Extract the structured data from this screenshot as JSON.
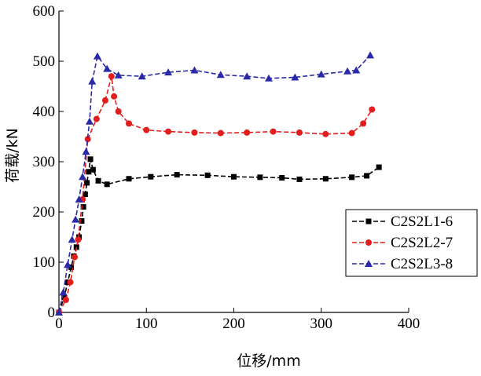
{
  "chart_data": {
    "type": "line",
    "xlabel": "位移/mm",
    "ylabel": "荷载/kN",
    "xlim": [
      0,
      400
    ],
    "ylim": [
      0,
      600
    ],
    "xticks": [
      "0",
      "100",
      "200",
      "300",
      "400"
    ],
    "yticks": [
      "0",
      "100",
      "200",
      "300",
      "400",
      "500",
      "600"
    ],
    "grid": false,
    "legend_position": "right-middle",
    "series": [
      {
        "name": "C2S2L1-6",
        "color": "#000000",
        "marker": "square",
        "x": [
          0,
          6,
          10,
          14,
          17,
          20,
          23,
          26,
          28,
          30,
          32,
          34,
          36,
          39,
          45,
          55,
          80,
          105,
          135,
          170,
          200,
          230,
          255,
          275,
          305,
          335,
          352,
          366
        ],
        "y": [
          0,
          30,
          60,
          90,
          112,
          130,
          150,
          182,
          210,
          235,
          258,
          280,
          305,
          284,
          262,
          255,
          266,
          270,
          274,
          273,
          270,
          269,
          268,
          265,
          266,
          269,
          272,
          289
        ]
      },
      {
        "name": "C2S2L2-7",
        "color": "#e11d1d",
        "marker": "circle",
        "x": [
          0,
          8,
          13,
          18,
          22,
          27,
          33,
          43,
          53,
          60,
          63,
          68,
          80,
          100,
          125,
          155,
          185,
          215,
          245,
          275,
          305,
          335,
          348,
          358
        ],
        "y": [
          0,
          25,
          60,
          110,
          145,
          225,
          345,
          385,
          422,
          470,
          430,
          400,
          376,
          363,
          360,
          358,
          357,
          358,
          360,
          358,
          355,
          357,
          376,
          404
        ]
      },
      {
        "name": "C2S2L3-8",
        "color": "#2a2aa8",
        "marker": "triangle",
        "x": [
          0,
          5,
          10,
          15,
          19,
          23,
          27,
          31,
          35,
          38,
          44,
          55,
          68,
          95,
          125,
          155,
          185,
          215,
          240,
          270,
          300,
          330,
          340,
          356
        ],
        "y": [
          0,
          40,
          95,
          145,
          185,
          225,
          270,
          320,
          380,
          460,
          510,
          485,
          472,
          470,
          478,
          482,
          473,
          470,
          466,
          468,
          474,
          480,
          482,
          512
        ]
      }
    ]
  }
}
